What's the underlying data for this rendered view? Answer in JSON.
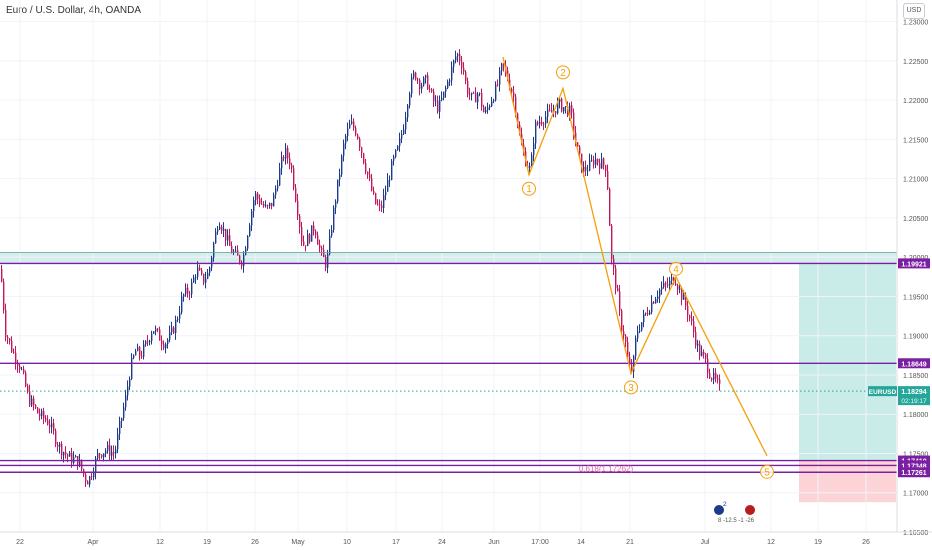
{
  "header": {
    "title": "Euro / U.S. Dollar, 4h, OANDA",
    "currency_button": "USD"
  },
  "chart_data": {
    "type": "candlestick",
    "symbol": "EURUSD",
    "ylim": [
      1.165,
      1.2325
    ],
    "y_ticks": [
      {
        "value": 1.23,
        "label": "1.23000"
      },
      {
        "value": 1.225,
        "label": "1.22500"
      },
      {
        "value": 1.22,
        "label": "1.22000"
      },
      {
        "value": 1.215,
        "label": "1.21500"
      },
      {
        "value": 1.21,
        "label": "1.21000"
      },
      {
        "value": 1.205,
        "label": "1.20500"
      },
      {
        "value": 1.2,
        "label": "1.20000"
      },
      {
        "value": 1.195,
        "label": "1.19500"
      },
      {
        "value": 1.19,
        "label": "1.19000"
      },
      {
        "value": 1.185,
        "label": "1.18500"
      },
      {
        "value": 1.18,
        "label": "1.18000"
      },
      {
        "value": 1.175,
        "label": "1.17500"
      },
      {
        "value": 1.17,
        "label": "1.17000"
      },
      {
        "value": 1.165,
        "label": "1.16500"
      }
    ],
    "x_ticks": [
      "22",
      "Apr",
      "12",
      "19",
      "26",
      "May",
      "10",
      "17",
      "24",
      "Jun",
      "17:00",
      "14",
      "21",
      "Jul",
      "12",
      "19",
      "26"
    ],
    "price_path": [
      [
        0,
        1.1985
      ],
      [
        5,
        1.1905
      ],
      [
        12,
        1.188
      ],
      [
        20,
        1.186
      ],
      [
        28,
        1.182
      ],
      [
        38,
        1.18
      ],
      [
        48,
        1.179
      ],
      [
        58,
        1.176
      ],
      [
        68,
        1.1745
      ],
      [
        78,
        1.174
      ],
      [
        84,
        1.172
      ],
      [
        88,
        1.1715
      ],
      [
        92,
        1.173
      ],
      [
        98,
        1.175
      ],
      [
        106,
        1.1755
      ],
      [
        114,
        1.175
      ],
      [
        120,
        1.179
      ],
      [
        125,
        1.182
      ],
      [
        130,
        1.186
      ],
      [
        135,
        1.188
      ],
      [
        140,
        1.1875
      ],
      [
        146,
        1.189
      ],
      [
        152,
        1.191
      ],
      [
        158,
        1.19
      ],
      [
        164,
        1.189
      ],
      [
        170,
        1.19
      ],
      [
        176,
        1.192
      ],
      [
        182,
        1.195
      ],
      [
        190,
        1.196
      ],
      [
        196,
        1.1985
      ],
      [
        202,
        1.197
      ],
      [
        208,
        1.198
      ],
      [
        212,
        1.201
      ],
      [
        218,
        1.205
      ],
      [
        224,
        1.203
      ],
      [
        230,
        1.201
      ],
      [
        236,
        1.2
      ],
      [
        242,
        1.1995
      ],
      [
        248,
        1.204
      ],
      [
        254,
        1.208
      ],
      [
        260,
        1.207
      ],
      [
        266,
        1.206
      ],
      [
        272,
        1.207
      ],
      [
        278,
        1.2105
      ],
      [
        284,
        1.2135
      ],
      [
        290,
        1.212
      ],
      [
        296,
        1.207
      ],
      [
        302,
        1.2015
      ],
      [
        308,
        1.2025
      ],
      [
        314,
        1.204
      ],
      [
        320,
        1.2005
      ],
      [
        326,
        1.199
      ],
      [
        332,
        1.205
      ],
      [
        338,
        1.21
      ],
      [
        344,
        1.215
      ],
      [
        350,
        1.217
      ],
      [
        356,
        1.216
      ],
      [
        362,
        1.213
      ],
      [
        368,
        1.21
      ],
      [
        374,
        1.207
      ],
      [
        380,
        1.206
      ],
      [
        386,
        1.209
      ],
      [
        392,
        1.212
      ],
      [
        398,
        1.214
      ],
      [
        404,
        1.2175
      ],
      [
        408,
        1.221
      ],
      [
        414,
        1.2235
      ],
      [
        420,
        1.222
      ],
      [
        426,
        1.2225
      ],
      [
        432,
        1.22
      ],
      [
        438,
        1.219
      ],
      [
        444,
        1.221
      ],
      [
        450,
        1.2235
      ],
      [
        456,
        1.226
      ],
      [
        462,
        1.2245
      ],
      [
        466,
        1.2215
      ],
      [
        472,
        1.22
      ],
      [
        478,
        1.221
      ],
      [
        484,
        1.218
      ],
      [
        490,
        1.22
      ],
      [
        496,
        1.2215
      ],
      [
        502,
        1.2245
      ],
      [
        508,
        1.2225
      ],
      [
        514,
        1.22
      ],
      [
        520,
        1.2145
      ],
      [
        526,
        1.212
      ],
      [
        530,
        1.211
      ],
      [
        534,
        1.2165
      ],
      [
        540,
        1.2175
      ],
      [
        546,
        1.218
      ],
      [
        552,
        1.2185
      ],
      [
        558,
        1.2195
      ],
      [
        564,
        1.219
      ],
      [
        570,
        1.2185
      ],
      [
        576,
        1.214
      ],
      [
        582,
        1.211
      ],
      [
        588,
        1.2115
      ],
      [
        594,
        1.2125
      ],
      [
        600,
        1.212
      ],
      [
        606,
        1.2115
      ],
      [
        611,
        1.1995
      ],
      [
        616,
        1.196
      ],
      [
        620,
        1.1915
      ],
      [
        624,
        1.19
      ],
      [
        628,
        1.186
      ],
      [
        632,
        1.1855
      ],
      [
        636,
        1.1905
      ],
      [
        642,
        1.192
      ],
      [
        648,
        1.1935
      ],
      [
        654,
        1.195
      ],
      [
        660,
        1.196
      ],
      [
        668,
        1.1965
      ],
      [
        674,
        1.1975
      ],
      [
        680,
        1.1955
      ],
      [
        686,
        1.1935
      ],
      [
        692,
        1.191
      ],
      [
        698,
        1.188
      ],
      [
        704,
        1.187
      ],
      [
        710,
        1.185
      ],
      [
        716,
        1.184
      ],
      [
        720,
        1.1829
      ]
    ],
    "horizontal_levels": [
      {
        "value": 1.19921,
        "label": "1.19921",
        "color": "#7b1fa2"
      },
      {
        "value": 1.18649,
        "label": "1.18649",
        "color": "#7b1fa2"
      },
      {
        "value": 1.1741,
        "label": "1.17410",
        "color": "#7b1fa2"
      },
      {
        "value": 1.17348,
        "label": "1.17348",
        "color": "#7b1fa2"
      },
      {
        "value": 1.17261,
        "label": "1.17261",
        "color": "#7b1fa2"
      }
    ],
    "current_price": {
      "symbol": "EURUSD",
      "value": 1.18294,
      "label": "1.18294",
      "countdown": "02:19:17",
      "color": "#26a69a"
    },
    "support_zone": {
      "from": 1.19921,
      "to": 1.2006,
      "color": "#b2dfdb"
    },
    "wave_points": [
      {
        "label": "1",
        "value": 1.2105
      },
      {
        "label": "2",
        "value": 1.2215
      },
      {
        "label": "3",
        "value": 1.1852
      },
      {
        "label": "4",
        "value": 1.1975
      },
      {
        "label": "5",
        "value": 1.1747
      }
    ],
    "fib_annotation": "0.618(1.17262)",
    "position": {
      "entry": 1.1741,
      "target": 1.1993,
      "stop": 1.1688
    },
    "colors": {
      "up": "#1e3a8a",
      "down": "#c2185b",
      "wave": "#f59e0b",
      "level": "#7b1fa2",
      "fib": "#e06c9f",
      "target": "#c9ece8",
      "stop": "#fcd4d7"
    },
    "events": {
      "count_label": "2",
      "detail_label": "8 -12.5 -1 -26"
    }
  }
}
